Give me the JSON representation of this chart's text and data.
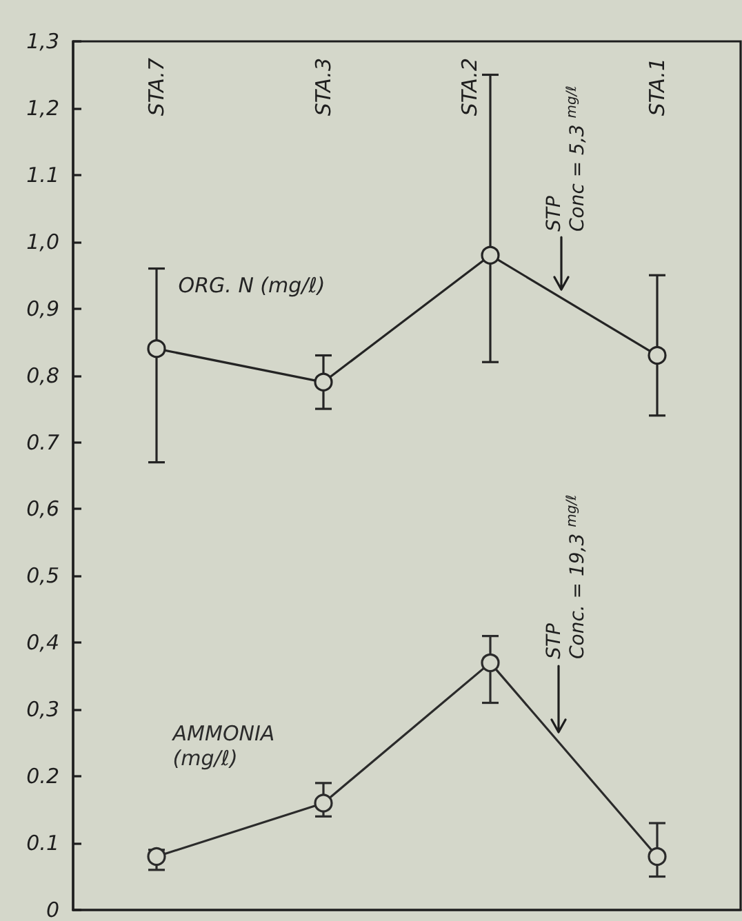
{
  "chart_data": {
    "type": "line",
    "categories": [
      "STA.7",
      "STA.3",
      "STA.2",
      "STA.1"
    ],
    "series": [
      {
        "name": "ORG. N (mg/ℓ)",
        "color": "#242424",
        "values": [
          0.84,
          0.79,
          0.98,
          0.83
        ],
        "errors": [
          [
            0.67,
            0.96
          ],
          [
            0.75,
            0.83
          ],
          [
            0.82,
            1.25
          ],
          [
            0.74,
            0.95
          ]
        ]
      },
      {
        "name": "AMMONIA (mg/ℓ)",
        "color": "#2b2b2b",
        "values": [
          0.08,
          0.16,
          0.37,
          0.08
        ],
        "errors": [
          [
            0.06,
            0.09
          ],
          [
            0.14,
            0.19
          ],
          [
            0.31,
            0.41
          ],
          [
            0.05,
            0.13
          ]
        ]
      }
    ],
    "ylim": [
      0,
      1.3
    ],
    "yticks": [
      0,
      {
        "value": 0.1,
        "label": "0.1"
      },
      {
        "value": 0.2,
        "label": "0.2"
      },
      {
        "value": 0.3,
        "label": "0,3"
      },
      {
        "value": 0.4,
        "label": "0,4"
      },
      {
        "value": 0.5,
        "label": "0,5"
      },
      {
        "value": 0.6,
        "label": "0,6"
      },
      {
        "value": 0.7,
        "label": "0.7"
      },
      {
        "value": 0.8,
        "label": "0,8"
      },
      {
        "value": 0.9,
        "label": "0,9"
      },
      {
        "value": 1.0,
        "label": "1,0"
      },
      {
        "value": 1.1,
        "label": "1.1"
      },
      {
        "value": 1.2,
        "label": "1,2"
      },
      {
        "value": 1.3,
        "label": "1,3"
      }
    ],
    "grid": false,
    "legend": false,
    "marker": "circle",
    "line_style": "solid",
    "annotations": [
      "STP\nConc = 5,3 $^{mg/ℓ}$",
      "STP\nConc. = 19,3 $^{mg/ℓ}$"
    ]
  }
}
